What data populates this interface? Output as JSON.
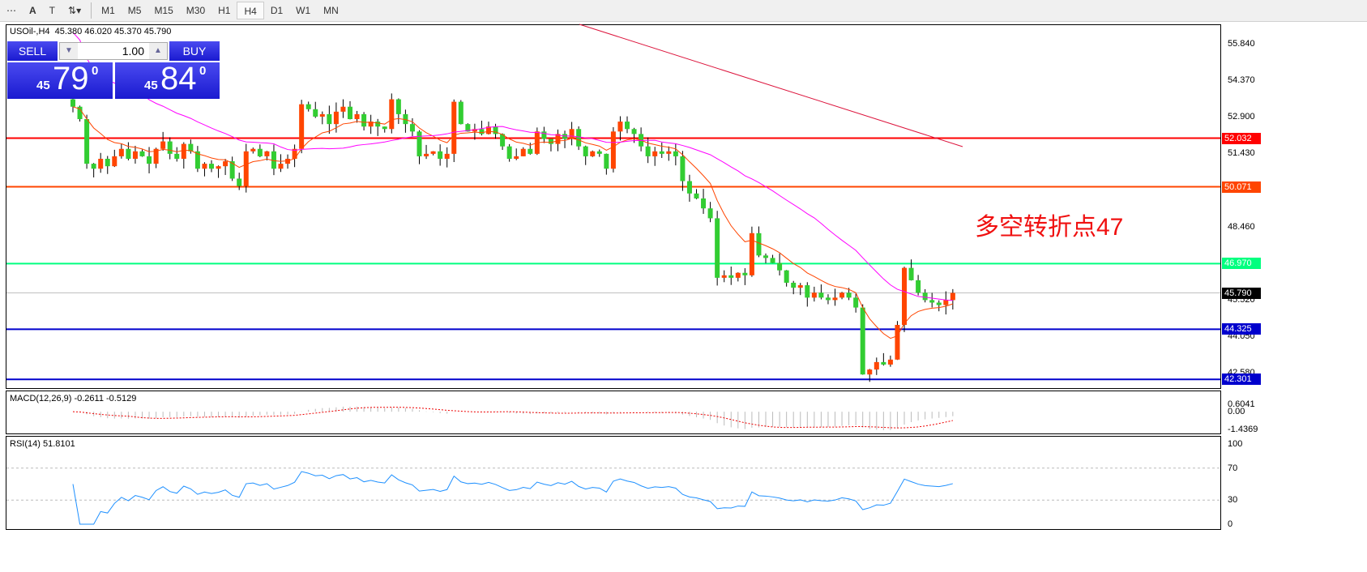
{
  "toolbar": {
    "timeframes": [
      "M1",
      "M5",
      "M15",
      "M30",
      "H1",
      "H4",
      "D1",
      "W1",
      "MN"
    ],
    "active": "H4"
  },
  "chart": {
    "title": "USOil-,H4",
    "ohlc": "45.380 46.020 45.370 45.790",
    "price_axis": [
      "55.840",
      "54.370",
      "52.900",
      "51.430",
      "48.460",
      "45.520",
      "44.050",
      "42.580"
    ],
    "lines": [
      {
        "price": 52.032,
        "label": "52.032",
        "color": "#ff0000"
      },
      {
        "price": 50.071,
        "label": "50.071",
        "color": "#ff4500"
      },
      {
        "price": 46.97,
        "label": "46.970",
        "color": "#00ff7f"
      },
      {
        "price": 45.79,
        "label": "45.790",
        "color": "#c0c0c0",
        "tag": "#000000"
      },
      {
        "price": 44.325,
        "label": "44.325",
        "color": "#0000cd"
      },
      {
        "price": 42.301,
        "label": "42.301",
        "color": "#0000cd"
      }
    ],
    "annotation": "多空转折点47",
    "closes": [
      53.3,
      52.8,
      51.0,
      50.8,
      51.2,
      50.9,
      51.3,
      51.6,
      51.2,
      51.5,
      51.3,
      51.0,
      51.6,
      51.9,
      51.4,
      51.2,
      51.8,
      51.5,
      50.8,
      51.0,
      50.8,
      50.9,
      51.1,
      50.4,
      50.1,
      51.5,
      51.6,
      51.3,
      51.5,
      50.8,
      51.0,
      51.2,
      51.6,
      53.4,
      53.2,
      52.9,
      53.0,
      52.6,
      53.1,
      53.3,
      52.8,
      53.0,
      52.5,
      52.7,
      52.5,
      52.4,
      53.6,
      53.0,
      52.6,
      52.3,
      51.3,
      51.4,
      51.5,
      51.2,
      51.4,
      53.5,
      52.6,
      52.3,
      52.4,
      52.2,
      52.5,
      52.2,
      51.7,
      51.2,
      51.3,
      51.6,
      51.4,
      52.3,
      52.0,
      51.8,
      52.2,
      52.0,
      52.4,
      51.7,
      51.3,
      51.5,
      51.4,
      50.8,
      52.3,
      52.7,
      52.4,
      52.2,
      51.7,
      51.3,
      51.5,
      51.4,
      51.5,
      51.3,
      50.3,
      49.8,
      49.6,
      49.2,
      48.8,
      46.4,
      46.5,
      46.4,
      46.6,
      46.5,
      48.2,
      47.3,
      47.2,
      47.0,
      46.7,
      46.2,
      46.0,
      46.1,
      45.6,
      45.8,
      45.6,
      45.5,
      45.6,
      45.8,
      45.6,
      45.2,
      42.5,
      42.7,
      43.0,
      42.9,
      43.1,
      44.5,
      46.8,
      46.3,
      45.8,
      45.5,
      45.4,
      45.3,
      45.5,
      45.79
    ],
    "bull_color": "#ff4500",
    "bear_color": "#32cd32",
    "ma_fast_color": "#ff4500",
    "ma_slow_color": "#ff00ff",
    "ma_long_color": "#dc143c"
  },
  "trade": {
    "sell": "SELL",
    "buy": "BUY",
    "lot": "1.00",
    "sell_big": "45",
    "sell_pips": "79",
    "sell_sup": "0",
    "buy_big": "45",
    "buy_pips": "84",
    "buy_sup": "0"
  },
  "macd": {
    "label": "MACD(12,26,9) -0.2611 -0.5129",
    "axis": [
      "0.6041",
      "0.00",
      "-1.4369"
    ]
  },
  "rsi": {
    "label": "RSI(14) 51.8101",
    "axis": [
      "100",
      "70",
      "30",
      "0"
    ]
  }
}
